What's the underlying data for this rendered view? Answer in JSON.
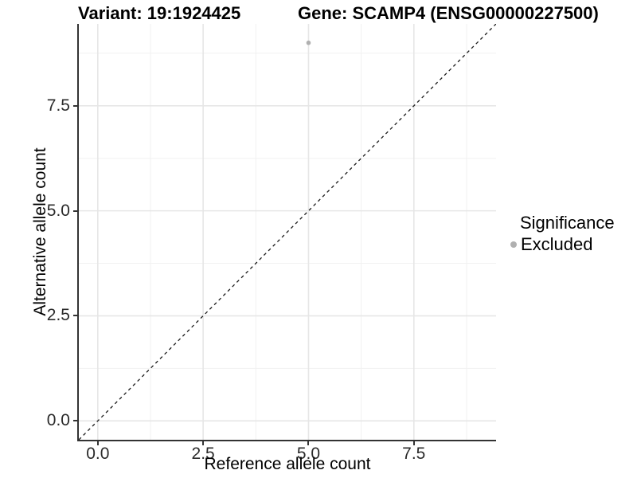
{
  "titles": {
    "variant": "Variant: 19:1924425",
    "gene": "Gene: SCAMP4 (ENSG00000227500)"
  },
  "legend": {
    "title": "Significance",
    "items": [
      {
        "label": "Excluded",
        "color": "#b0b0b0"
      }
    ]
  },
  "colors": {
    "point": "#b0b0b0",
    "axis_line": "#333333",
    "grid_major": "#e6e6e6",
    "grid_minor": "#f1f1f1",
    "reference_line": "#1a1a1a",
    "background": "#ffffff"
  },
  "chart_data": {
    "type": "scatter",
    "title": "Variant: 19:1924425   Gene: SCAMP4 (ENSG00000227500)",
    "xlabel": "Reference allele count",
    "ylabel": "Alternative allele count",
    "xlim": [
      -0.45,
      9.45
    ],
    "ylim": [
      -0.45,
      9.45
    ],
    "x_ticks": [
      0.0,
      2.5,
      5.0,
      7.5
    ],
    "y_ticks": [
      0.0,
      2.5,
      5.0,
      7.5
    ],
    "x_minor_ticks": [
      1.25,
      3.75,
      6.25,
      8.75
    ],
    "y_minor_ticks": [
      1.25,
      3.75,
      6.25,
      8.75
    ],
    "tick_label_format": "one_decimal",
    "grid": true,
    "legend_position": "right",
    "legend_title": "Significance",
    "series": [
      {
        "name": "Excluded",
        "color": "#b0b0b0",
        "points": [
          {
            "x": 5,
            "y": 9
          }
        ]
      }
    ],
    "reference_line": {
      "slope": 1,
      "intercept": 0,
      "style": "dashed",
      "color": "#1a1a1a"
    }
  }
}
